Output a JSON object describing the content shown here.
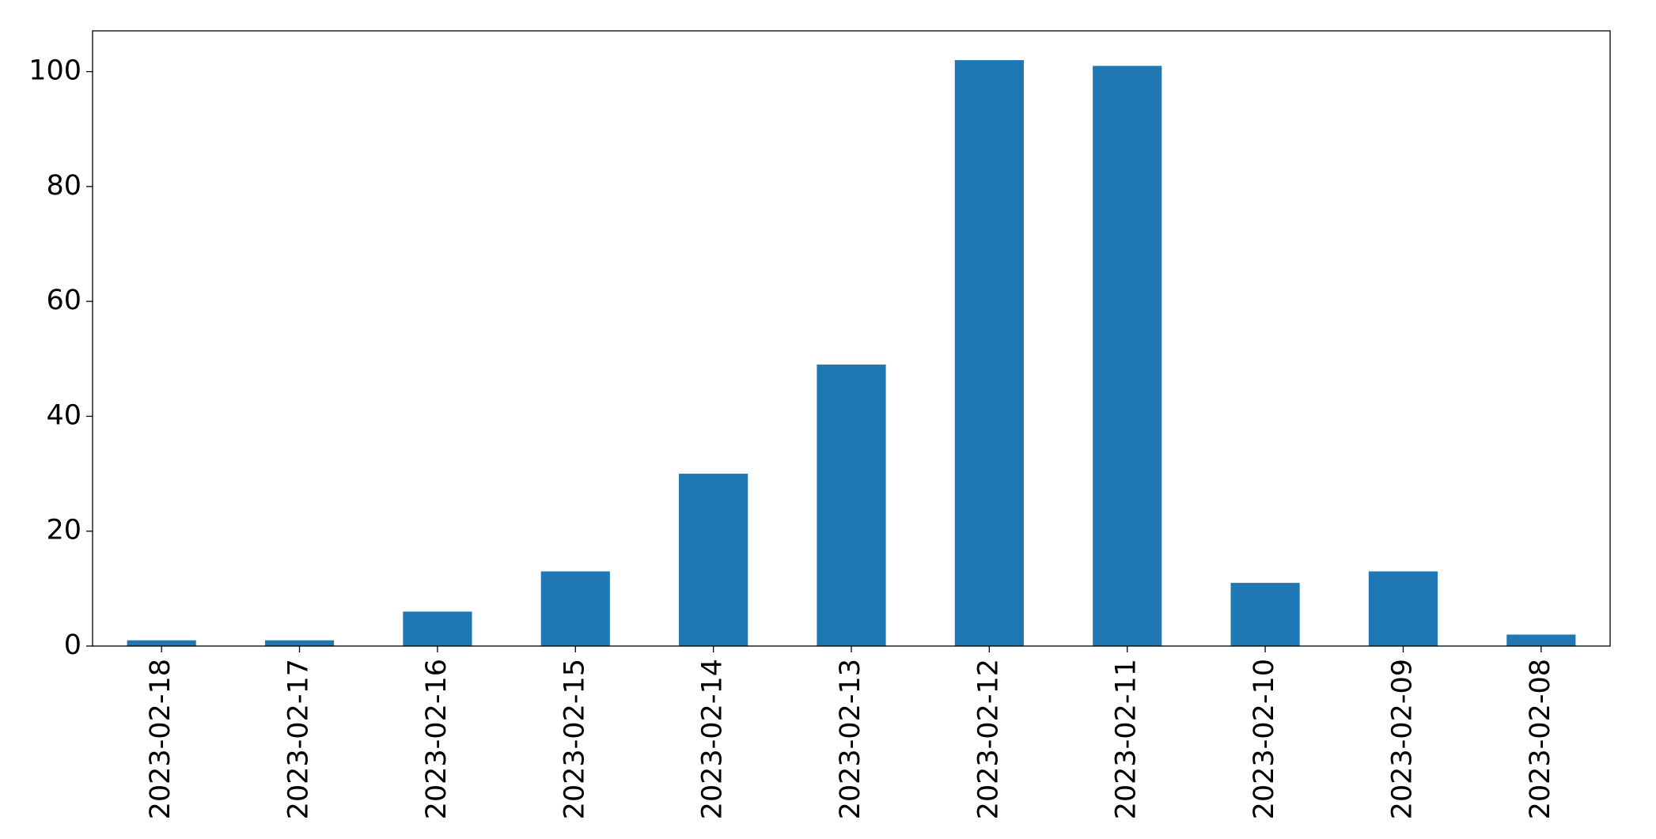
{
  "chart_data": {
    "type": "bar",
    "categories": [
      "2023-02-18",
      "2023-02-17",
      "2023-02-16",
      "2023-02-15",
      "2023-02-14",
      "2023-02-13",
      "2023-02-12",
      "2023-02-11",
      "2023-02-10",
      "2023-02-09",
      "2023-02-08"
    ],
    "values": [
      1,
      1,
      6,
      13,
      30,
      49,
      102,
      101,
      11,
      13,
      2
    ],
    "color": "#1f77b4",
    "ylim": [
      0,
      107.1
    ],
    "yticks": [
      0,
      20,
      40,
      60,
      80,
      100
    ],
    "grid": false
  }
}
